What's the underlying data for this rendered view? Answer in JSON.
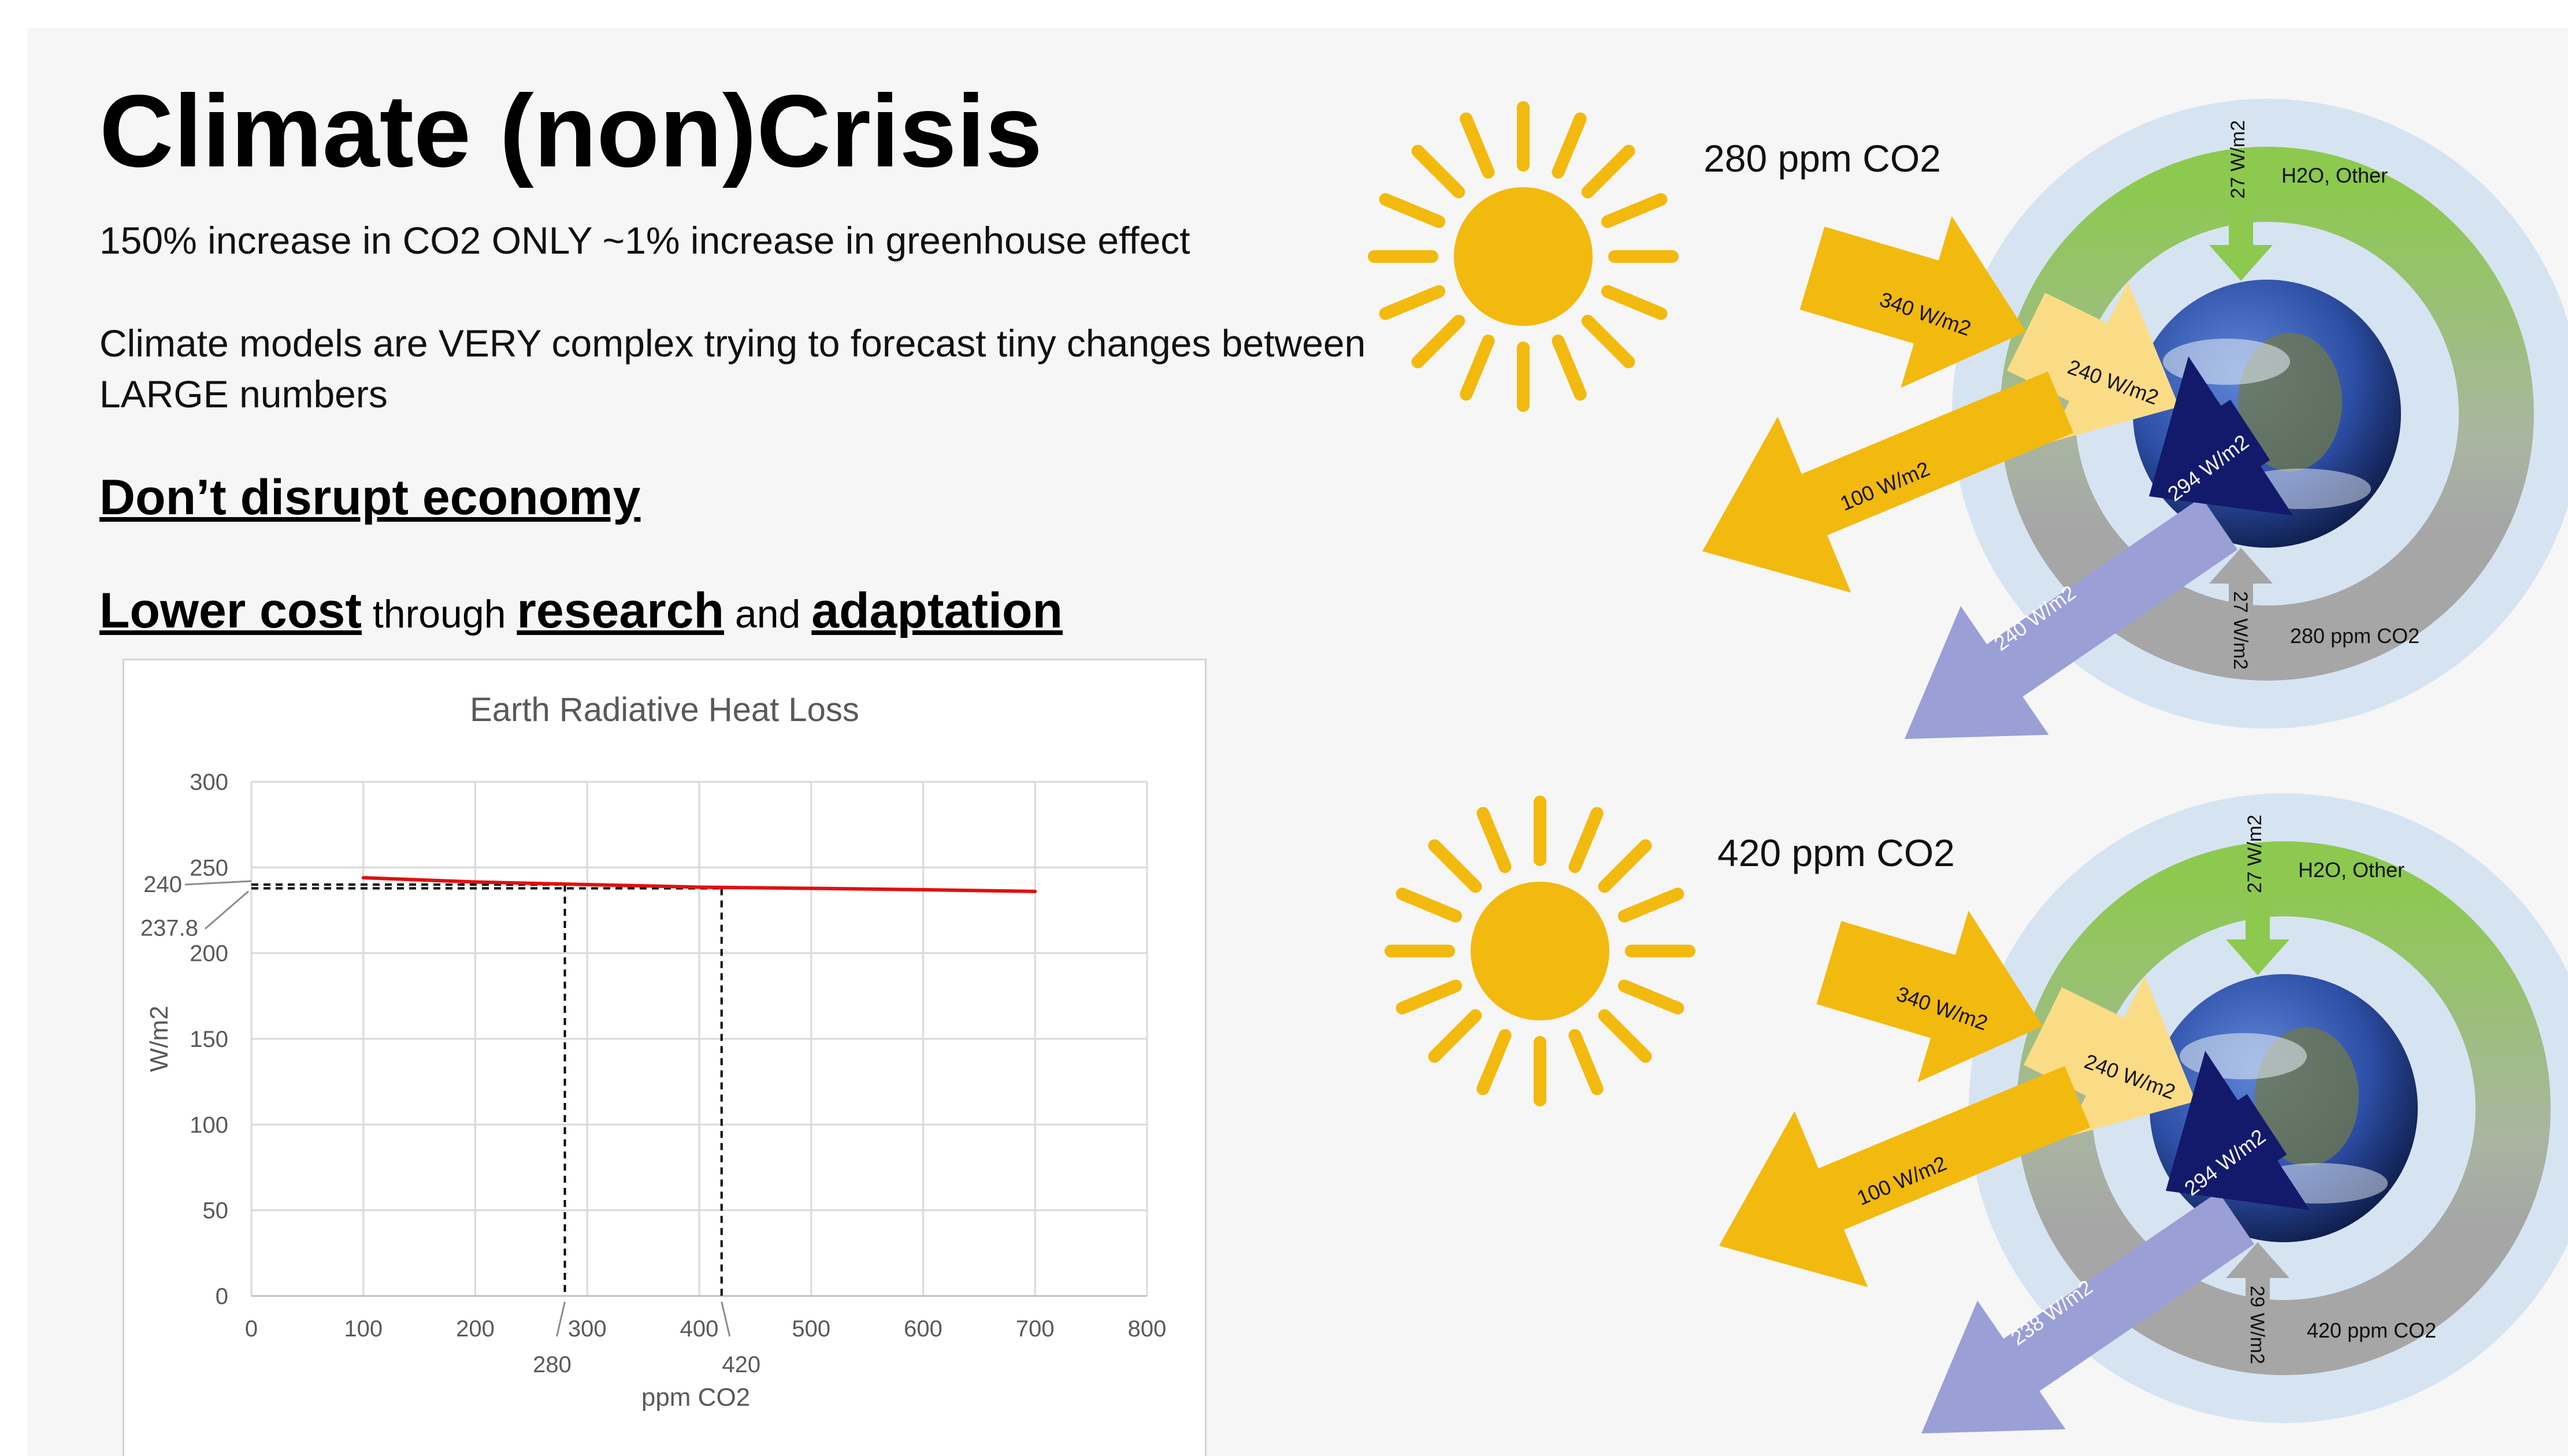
{
  "slide": {
    "title": "Climate (non)Crisis",
    "subtitle": "150% increase in CO2 ONLY ~1% increase in greenhouse effect",
    "paragraph": "Climate models are VERY complex trying to forecast tiny changes between LARGE  numbers",
    "heading_economy": "Don’t disrupt economy",
    "heading_cost": {
      "part1": "Lower cost",
      "part2": " through ",
      "part3": "research",
      "part4": " and ",
      "part5": "adaptation"
    }
  },
  "chart_data": {
    "type": "line",
    "title": "Earth Radiative Heat Loss",
    "xlabel": "ppm CO2",
    "ylabel": "W/m2",
    "xlim": [
      0,
      800
    ],
    "ylim": [
      0,
      300
    ],
    "x_ticks": [
      0,
      100,
      200,
      300,
      400,
      500,
      600,
      700,
      800
    ],
    "y_ticks": [
      0,
      50,
      100,
      150,
      200,
      250,
      300
    ],
    "grid": true,
    "series": [
      {
        "x": [
          100,
          200,
          300,
          400,
          500,
          600,
          700
        ],
        "values": [
          244,
          241.5,
          240,
          238.5,
          237.8,
          237,
          236
        ],
        "color": "#e01010"
      }
    ],
    "annotations": {
      "y_marks": [
        "240",
        "237.8"
      ],
      "x_marks": [
        "280",
        "420"
      ]
    }
  },
  "diagram": {
    "top": {
      "caption": "280 ppm CO2",
      "incoming": "340 W/m2",
      "absorbed": "240 W/m2",
      "reflected": "100 W/m2",
      "surface": "294 W/m2",
      "outgoing": "240 W/m2",
      "h2o_flux": "27 W/m2",
      "h2o_label": "H2O, Other",
      "co2_flux": "27 W/m2",
      "co2_label": "280 ppm CO2"
    },
    "bottom": {
      "caption": "420 ppm CO2",
      "incoming": "340 W/m2",
      "absorbed": "240 W/m2",
      "reflected": "100 W/m2",
      "surface": "294 W/m2",
      "outgoing": "238 W/m2",
      "h2o_flux": "27 W/m2",
      "h2o_label": "H2O, Other",
      "co2_flux": "29 W/m2",
      "co2_label": "420 ppm CO2"
    }
  },
  "colors": {
    "sun": "#f2b90f",
    "arrow_gold": "#f2b90f",
    "arrow_pale": "#fbdc86",
    "arrow_navy": "#13196b",
    "arrow_lavender": "#9a9fd6",
    "green": "#8cc94e",
    "gray": "#a6a6a6",
    "atmosphere": "#d6e4f2",
    "ocean": "#2d4fa6"
  }
}
